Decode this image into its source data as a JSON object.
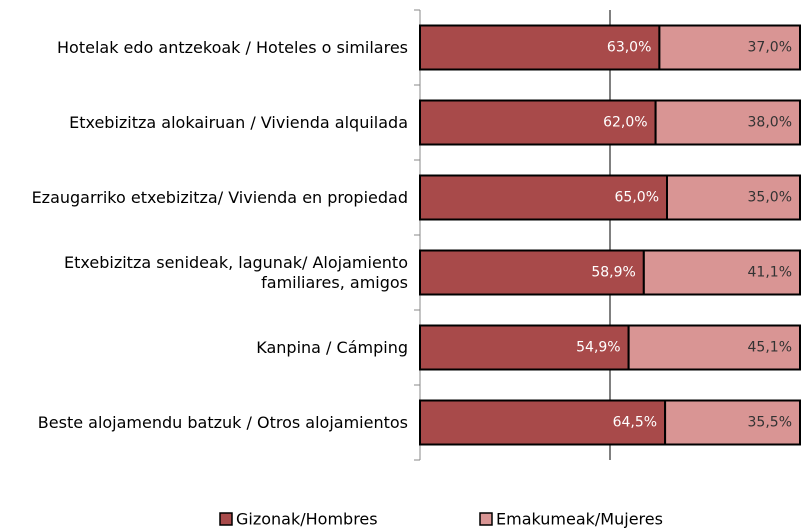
{
  "chart_data": {
    "type": "stacked_barh",
    "categories": [
      "Hotelak edo antzekoak / Hoteles o similares",
      "Etxebizitza alokairuan / Vivienda alquilada",
      "Ezaugarriko etxebizitza/ Vivienda en propiedad",
      "Etxebizitza senideak, lagunak/ Alojamiento familiares, amigos",
      "Kanpina / Cámping",
      "Beste alojamendu batzuk / Otros alojamientos"
    ],
    "series": [
      {
        "name": "Gizonak/Hombres",
        "color": "#a84a4a",
        "values": [
          63.0,
          62.0,
          65.0,
          58.9,
          54.9,
          64.5
        ],
        "value_labels": [
          "63,0%",
          "62,0%",
          "65,0%",
          "58,9%",
          "54,9%",
          "64,5%"
        ]
      },
      {
        "name": "Emakumeak/Mujeres",
        "color": "#d99594",
        "values": [
          37.0,
          38.0,
          35.0,
          41.1,
          45.1,
          35.5
        ],
        "value_labels": [
          "37,0%",
          "38,0%",
          "35,0%",
          "41,1%",
          "45,1%",
          "35,5%"
        ]
      }
    ],
    "xlim": [
      0,
      100
    ]
  }
}
